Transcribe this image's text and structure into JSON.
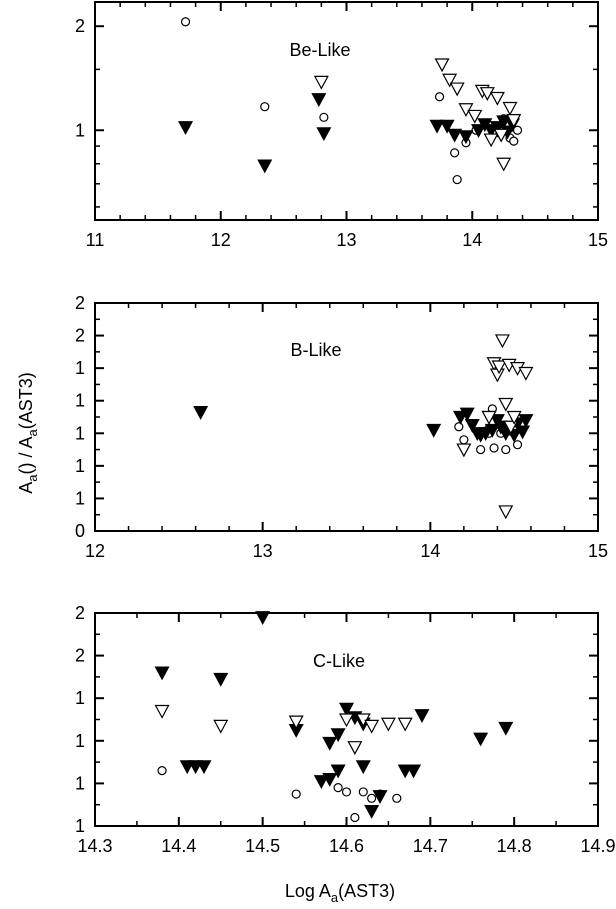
{
  "figure": {
    "xlabel": "Log A",
    "xlabel_sub": "a",
    "xlabel_tail": "(AST3)",
    "ylabel_p1": "A",
    "ylabel_sub1": "a",
    "ylabel_p2": "() / A",
    "ylabel_sub2": "a",
    "ylabel_p3": "(AST3)"
  },
  "chart_data": [
    {
      "type": "scatter",
      "title": "Be-Like",
      "xlim": [
        11,
        15
      ],
      "ylim": [
        0.55,
        2.35
      ],
      "xticks": [
        11,
        12,
        13,
        14,
        15
      ],
      "yticks": [
        1,
        2
      ],
      "log_y": true,
      "grid": false,
      "legend": "none",
      "series": [
        {
          "marker": "circle-open",
          "points": [
            [
              11.72,
              2.06
            ],
            [
              12.35,
              1.17
            ],
            [
              12.82,
              1.09
            ],
            [
              13.74,
              1.25
            ],
            [
              13.86,
              0.86
            ],
            [
              13.88,
              0.72
            ],
            [
              13.95,
              0.92
            ],
            [
              14.03,
              1.0
            ],
            [
              14.1,
              1.05
            ],
            [
              14.18,
              1.0
            ],
            [
              14.22,
              0.98
            ],
            [
              14.25,
              1.08
            ],
            [
              14.28,
              1.0
            ],
            [
              14.3,
              0.95
            ],
            [
              14.33,
              0.93
            ],
            [
              14.36,
              1.0
            ]
          ]
        },
        {
          "marker": "triangle-down-filled",
          "points": [
            [
              11.72,
              1.02
            ],
            [
              12.35,
              0.79
            ],
            [
              12.78,
              1.23
            ],
            [
              12.82,
              0.98
            ],
            [
              13.72,
              1.03
            ],
            [
              13.8,
              1.03
            ],
            [
              13.86,
              0.97
            ],
            [
              13.95,
              0.96
            ],
            [
              14.05,
              1.0
            ],
            [
              14.1,
              1.04
            ],
            [
              14.15,
              1.0
            ],
            [
              14.2,
              1.02
            ],
            [
              14.25,
              1.06
            ],
            [
              14.28,
              0.99
            ],
            [
              14.32,
              1.04
            ]
          ]
        },
        {
          "marker": "triangle-down-open",
          "points": [
            [
              12.8,
              1.38
            ],
            [
              13.76,
              1.55
            ],
            [
              13.82,
              1.4
            ],
            [
              13.88,
              1.32
            ],
            [
              13.95,
              1.15
            ],
            [
              14.02,
              1.1
            ],
            [
              14.08,
              1.3
            ],
            [
              14.12,
              1.28
            ],
            [
              14.15,
              0.94
            ],
            [
              14.2,
              1.24
            ],
            [
              14.23,
              0.97
            ],
            [
              14.25,
              0.8
            ],
            [
              14.3,
              1.16
            ],
            [
              14.33,
              1.07
            ]
          ]
        }
      ]
    },
    {
      "type": "scatter",
      "title": "B-Like",
      "xlim": [
        12,
        15
      ],
      "ylim": [
        0.4,
        1.8
      ],
      "xticks": [
        12,
        13,
        14,
        15
      ],
      "yticks": [
        0.4,
        0.6,
        0.8,
        1.0,
        1.2,
        1.4,
        1.6,
        1.8
      ],
      "grid": false,
      "legend": "none",
      "series": [
        {
          "marker": "circle-open",
          "points": [
            [
              14.17,
              1.04
            ],
            [
              14.2,
              0.96
            ],
            [
              14.3,
              0.9
            ],
            [
              14.35,
              1.0
            ],
            [
              14.37,
              1.15
            ],
            [
              14.38,
              0.91
            ],
            [
              14.42,
              1.0
            ],
            [
              14.45,
              0.9
            ],
            [
              14.47,
              1.02
            ],
            [
              14.52,
              0.93
            ],
            [
              14.35,
              1.03
            ]
          ]
        },
        {
          "marker": "triangle-down-filled",
          "points": [
            [
              12.63,
              1.13
            ],
            [
              14.02,
              1.02
            ],
            [
              14.18,
              1.1
            ],
            [
              14.22,
              1.12
            ],
            [
              14.25,
              1.05
            ],
            [
              14.28,
              1.0
            ],
            [
              14.3,
              0.99
            ],
            [
              14.33,
              1.0
            ],
            [
              14.35,
              1.1
            ],
            [
              14.37,
              1.02
            ],
            [
              14.4,
              1.08
            ],
            [
              14.42,
              1.04
            ],
            [
              14.45,
              1.0
            ],
            [
              14.47,
              1.03
            ],
            [
              14.5,
              0.99
            ],
            [
              14.52,
              1.06
            ],
            [
              14.55,
              1.01
            ],
            [
              14.57,
              1.08
            ]
          ]
        },
        {
          "marker": "triangle-down-open",
          "points": [
            [
              14.2,
              0.9
            ],
            [
              14.35,
              1.1
            ],
            [
              14.38,
              1.43
            ],
            [
              14.4,
              1.36
            ],
            [
              14.41,
              1.41
            ],
            [
              14.43,
              1.57
            ],
            [
              14.45,
              1.18
            ],
            [
              14.47,
              1.42
            ],
            [
              14.48,
              1.04
            ],
            [
              14.52,
              1.4
            ],
            [
              14.57,
              1.37
            ],
            [
              14.5,
              1.1
            ],
            [
              14.45,
              0.52
            ]
          ]
        }
      ]
    },
    {
      "type": "scatter",
      "title": "C-Like",
      "xlim": [
        14.3,
        14.9
      ],
      "ylim": [
        0.8,
        1.8
      ],
      "xticks": [
        14.3,
        14.4,
        14.5,
        14.6,
        14.7,
        14.8,
        14.9
      ],
      "yticks": [
        0.8,
        1.0,
        1.2,
        1.4,
        1.6,
        1.8
      ],
      "grid": false,
      "legend": "none",
      "series": [
        {
          "marker": "circle-open",
          "points": [
            [
              14.38,
              1.06
            ],
            [
              14.54,
              0.95
            ],
            [
              14.59,
              0.98
            ],
            [
              14.6,
              0.96
            ],
            [
              14.61,
              0.84
            ],
            [
              14.62,
              0.96
            ],
            [
              14.63,
              0.93
            ],
            [
              14.64,
              0.95
            ],
            [
              14.66,
              0.93
            ]
          ]
        },
        {
          "marker": "triangle-down-filled",
          "points": [
            [
              14.38,
              1.52
            ],
            [
              14.41,
              1.08
            ],
            [
              14.42,
              1.08
            ],
            [
              14.43,
              1.08
            ],
            [
              14.45,
              1.49
            ],
            [
              14.5,
              1.78
            ],
            [
              14.54,
              1.25
            ],
            [
              14.57,
              1.01
            ],
            [
              14.58,
              1.02
            ],
            [
              14.58,
              1.19
            ],
            [
              14.59,
              1.06
            ],
            [
              14.59,
              1.23
            ],
            [
              14.6,
              1.35
            ],
            [
              14.61,
              1.31
            ],
            [
              14.62,
              1.08
            ],
            [
              14.62,
              1.28
            ],
            [
              14.63,
              0.87
            ],
            [
              14.64,
              0.94
            ],
            [
              14.67,
              1.06
            ],
            [
              14.68,
              1.06
            ],
            [
              14.69,
              1.32
            ],
            [
              14.76,
              1.21
            ],
            [
              14.79,
              1.26
            ]
          ]
        },
        {
          "marker": "triangle-down-open",
          "points": [
            [
              14.38,
              1.34
            ],
            [
              14.45,
              1.27
            ],
            [
              14.54,
              1.29
            ],
            [
              14.6,
              1.3
            ],
            [
              14.61,
              1.17
            ],
            [
              14.62,
              1.3
            ],
            [
              14.63,
              1.27
            ],
            [
              14.65,
              1.28
            ],
            [
              14.67,
              1.28
            ]
          ]
        }
      ]
    }
  ]
}
